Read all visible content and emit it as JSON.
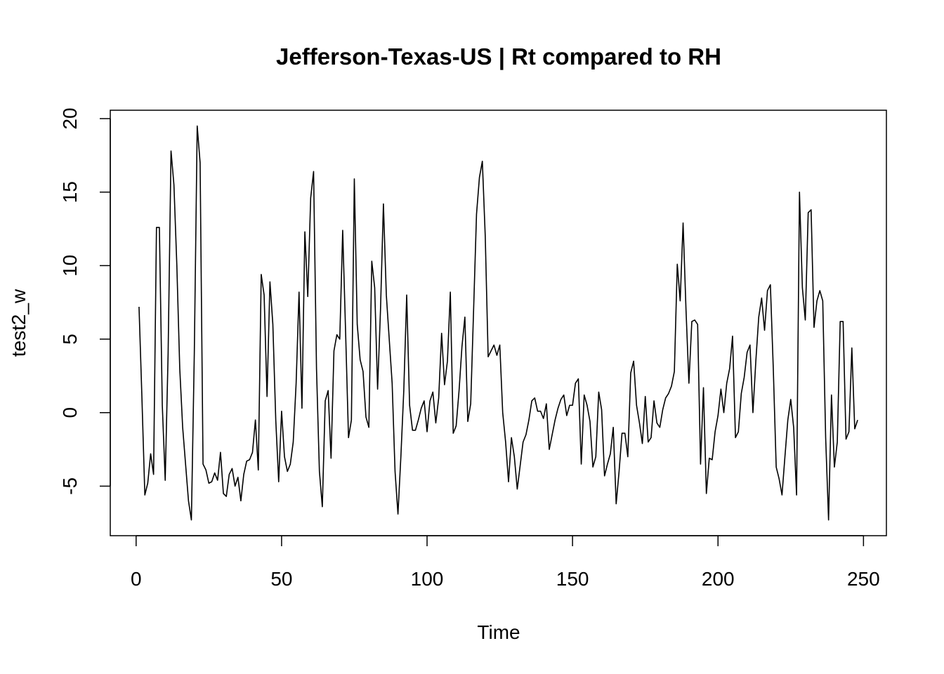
{
  "chart_data": {
    "type": "line",
    "title": "Jefferson-Texas-US | Rt compared to RH",
    "x_label": "Time",
    "y_label": "test2_w",
    "color": "#000000",
    "xlim": [
      -8.88,
      257.88
    ],
    "ylim": [
      -8.37,
      20.57
    ],
    "xticks": [
      0,
      50,
      100,
      150,
      200,
      250
    ],
    "yticks": [
      -5,
      0,
      5,
      10,
      15,
      20
    ],
    "x": [
      1,
      2,
      3,
      4,
      5,
      6,
      7,
      8,
      9,
      10,
      11,
      12,
      13,
      14,
      15,
      16,
      17,
      18,
      19,
      20,
      21,
      22,
      23,
      24,
      25,
      26,
      27,
      28,
      29,
      30,
      31,
      32,
      33,
      34,
      35,
      36,
      37,
      38,
      39,
      40,
      41,
      42,
      43,
      44,
      45,
      46,
      47,
      48,
      49,
      50,
      51,
      52,
      53,
      54,
      55,
      56,
      57,
      58,
      59,
      60,
      61,
      62,
      63,
      64,
      65,
      66,
      67,
      68,
      69,
      70,
      71,
      72,
      73,
      74,
      75,
      76,
      77,
      78,
      79,
      80,
      81,
      82,
      83,
      84,
      85,
      86,
      87,
      88,
      89,
      90,
      91,
      92,
      93,
      94,
      95,
      96,
      97,
      98,
      99,
      100,
      101,
      102,
      103,
      104,
      105,
      106,
      107,
      108,
      109,
      110,
      111,
      112,
      113,
      114,
      115,
      116,
      117,
      118,
      119,
      120,
      121,
      122,
      123,
      124,
      125,
      126,
      127,
      128,
      129,
      130,
      131,
      132,
      133,
      134,
      135,
      136,
      137,
      138,
      139,
      140,
      141,
      142,
      143,
      144,
      145,
      146,
      147,
      148,
      149,
      150,
      151,
      152,
      153,
      154,
      155,
      156,
      157,
      158,
      159,
      160,
      161,
      162,
      163,
      164,
      165,
      166,
      167,
      168,
      169,
      170,
      171,
      172,
      173,
      174,
      175,
      176,
      177,
      178,
      179,
      180,
      181,
      182,
      183,
      184,
      185,
      186,
      187,
      188,
      189,
      190,
      191,
      192,
      193,
      194,
      195,
      196,
      197,
      198,
      199,
      200,
      201,
      202,
      203,
      204,
      205,
      206,
      207,
      208,
      209,
      210,
      211,
      212,
      213,
      214,
      215,
      216,
      217,
      218,
      219,
      220,
      221,
      222,
      223,
      224,
      225,
      226,
      227,
      228,
      229,
      230,
      231,
      232,
      233,
      234,
      235,
      236,
      237,
      238,
      239,
      240,
      241,
      242,
      243,
      244,
      245,
      246,
      247,
      248
    ],
    "values": [
      7.2,
      1,
      -5.6,
      -4.8,
      -2.8,
      -4.2,
      12.6,
      12.6,
      0.5,
      -4.6,
      4,
      17.8,
      15.5,
      10,
      3,
      -1,
      -3.5,
      -6,
      -7.3,
      4,
      19.5,
      17,
      -3.5,
      -3.9,
      -4.8,
      -4.7,
      -4.1,
      -4.6,
      -2.7,
      -5.5,
      -5.7,
      -4.2,
      -3.8,
      -5,
      -4.4,
      -6,
      -4.2,
      -3.3,
      -3.2,
      -2.7,
      -0.5,
      -3.9,
      9.4,
      8,
      1.1,
      8.9,
      6,
      -0.5,
      -4.7,
      0.1,
      -3,
      -4,
      -3.5,
      -2,
      2,
      8.2,
      0.3,
      12.3,
      7.9,
      14.6,
      16.4,
      3,
      -4,
      -6.4,
      0.8,
      1.5,
      -3.1,
      4.2,
      5.3,
      5,
      12.4,
      5.5,
      -1.7,
      -0.5,
      15.9,
      6,
      3.6,
      2.8,
      -0.3,
      -1,
      10.3,
      8.5,
      1.6,
      7,
      14.2,
      8,
      5,
      2,
      -4,
      -6.9,
      -3,
      1.5,
      8,
      0.5,
      -1.2,
      -1.2,
      -0.5,
      0.3,
      0.8,
      -1.3,
      0.8,
      1.4,
      -0.7,
      1,
      5.4,
      1.9,
      3.5,
      8.2,
      -1.4,
      -0.9,
      1.5,
      4.5,
      6.5,
      -0.6,
      0.6,
      7,
      13.5,
      16,
      17.1,
      12,
      3.8,
      4.2,
      4.6,
      3.9,
      4.6,
      0,
      -2,
      -4.7,
      -1.7,
      -3,
      -5.2,
      -3.6,
      -2,
      -1.5,
      -0.5,
      0.8,
      1,
      0.1,
      0.1,
      -0.4,
      0.6,
      -2.5,
      -1.5,
      -0.5,
      0.3,
      0.9,
      1.2,
      -0.2,
      0.5,
      0.5,
      2,
      2.3,
      -3.5,
      1.2,
      0.5,
      -0.6,
      -3.7,
      -3,
      1.4,
      0.2,
      -4.3,
      -3.5,
      -2.8,
      -1,
      -6.2,
      -4,
      -1.4,
      -1.4,
      -3,
      2.7,
      3.5,
      0.5,
      -0.7,
      -2.1,
      1.1,
      -2,
      -1.7,
      0.8,
      -0.7,
      -1,
      0.2,
      1,
      1.3,
      1.8,
      2.8,
      10.1,
      7.6,
      12.9,
      7,
      2,
      6.2,
      6.3,
      6,
      -3.5,
      1.7,
      -5.5,
      -3.1,
      -3.2,
      -1.3,
      -0.2,
      1.6,
      0,
      2,
      3,
      5.2,
      -1.7,
      -1.3,
      1.3,
      2.4,
      4.1,
      4.6,
      0,
      3.5,
      6.5,
      7.8,
      5.6,
      8.3,
      8.7,
      3,
      -3.7,
      -4.5,
      -5.6,
      -3,
      -0.5,
      0.9,
      -1,
      -5.6,
      15,
      8.5,
      6.3,
      13.6,
      13.8,
      5.8,
      7.6,
      8.3,
      7.6,
      -1.7,
      -7.3,
      1.2,
      -3.7,
      -2,
      6.2,
      6.2,
      -1.8,
      -1.3,
      4.4,
      -1.1,
      -0.5
    ]
  }
}
